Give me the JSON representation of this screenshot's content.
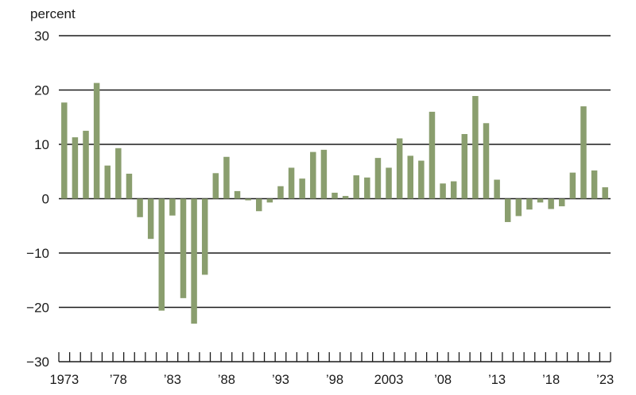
{
  "chart_data": {
    "type": "bar",
    "unit_label": "percent",
    "ylim": [
      -30,
      30
    ],
    "y_ticks": [
      30,
      20,
      10,
      0,
      -10,
      -20,
      -30
    ],
    "y_tick_labels": [
      "30",
      "20",
      "10",
      "0",
      "−10",
      "−20",
      "−30"
    ],
    "x_tick_labels": [
      {
        "year": 1973,
        "label": "1973"
      },
      {
        "year": 1978,
        "label": "’78"
      },
      {
        "year": 1983,
        "label": "’83"
      },
      {
        "year": 1988,
        "label": "’88"
      },
      {
        "year": 1993,
        "label": "’93"
      },
      {
        "year": 1998,
        "label": "’98"
      },
      {
        "year": 2003,
        "label": "2003"
      },
      {
        "year": 2008,
        "label": "’08"
      },
      {
        "year": 2013,
        "label": "’13"
      },
      {
        "year": 2018,
        "label": "’18"
      },
      {
        "year": 2023,
        "label": "’23"
      }
    ],
    "grid": true,
    "categories": [
      1973,
      1974,
      1975,
      1976,
      1977,
      1978,
      1979,
      1980,
      1981,
      1982,
      1983,
      1984,
      1985,
      1986,
      1987,
      1988,
      1989,
      1990,
      1991,
      1992,
      1993,
      1994,
      1995,
      1996,
      1997,
      1998,
      1999,
      2000,
      2001,
      2002,
      2003,
      2004,
      2005,
      2006,
      2007,
      2008,
      2009,
      2010,
      2011,
      2012,
      2013,
      2014,
      2015,
      2016,
      2017,
      2018,
      2019,
      2020,
      2021,
      2022,
      2023
    ],
    "values": [
      17.7,
      11.3,
      12.5,
      21.3,
      6.1,
      9.3,
      4.6,
      -3.4,
      -7.4,
      -20.6,
      -3.1,
      -18.3,
      -23.0,
      -14.0,
      4.7,
      7.7,
      1.4,
      -0.3,
      -2.3,
      -0.7,
      2.3,
      5.7,
      3.7,
      8.6,
      9.0,
      1.1,
      0.5,
      4.3,
      3.9,
      7.5,
      5.7,
      11.1,
      7.9,
      7.0,
      16.0,
      2.8,
      3.2,
      11.9,
      18.9,
      13.9,
      3.5,
      -4.3,
      -3.2,
      -2.0,
      -0.7,
      -1.9,
      -1.4,
      4.8,
      17.0,
      5.2,
      2.1
    ],
    "colors": {
      "bar": "#8a9e6e",
      "grid": "#1a1a1a",
      "text": "#1a1a1a"
    }
  }
}
